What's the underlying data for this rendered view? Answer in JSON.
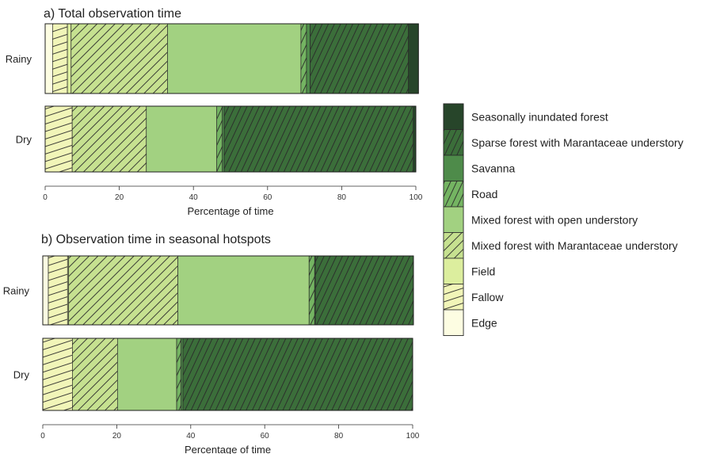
{
  "chart_data": {
    "type": "bar",
    "orientation": "horizontal",
    "stacked": true,
    "xlim": [
      0,
      100
    ],
    "xticks": [
      0,
      20,
      40,
      60,
      80,
      100
    ],
    "categories": [
      "Edge",
      "Fallow",
      "Field",
      "Mixed forest with Marantaceae understory",
      "Mixed forest with open understory",
      "Road",
      "Savanna",
      "Sparse forest with Marantaceae understory",
      "Seasonally inundated forest"
    ],
    "category_styles": [
      {
        "color": "#fdfde2",
        "hatch": "none"
      },
      {
        "color": "#f1f5b8",
        "hatch": "flat"
      },
      {
        "color": "#dcee9e",
        "hatch": "none"
      },
      {
        "color": "#c6e190",
        "hatch": "diag"
      },
      {
        "color": "#a2d181",
        "hatch": "none"
      },
      {
        "color": "#74b462",
        "hatch": "steep"
      },
      {
        "color": "#4e8b4a",
        "hatch": "none"
      },
      {
        "color": "#3b6e3a",
        "hatch": "steep"
      },
      {
        "color": "#27452a",
        "hatch": "none"
      }
    ],
    "legend_position": "right",
    "legend_order": [
      8,
      7,
      6,
      5,
      4,
      3,
      2,
      1,
      0
    ],
    "panels": [
      {
        "title": "a) Total observation time",
        "xlabel": "Percentage of time",
        "rows": [
          {
            "label": "Rainy",
            "values": [
              2,
              4,
              1,
              26,
              36,
              1.5,
              1,
              26.5,
              2.7
            ]
          },
          {
            "label": "Dry",
            "values": [
              0,
              7.3,
              0,
              20,
              19,
              1.5,
              0.5,
              51,
              0.7
            ]
          }
        ]
      },
      {
        "title": "b) Observation time in seasonal hotspots",
        "xlabel": "Percentage of time",
        "rows": [
          {
            "label": "Rainy",
            "values": [
              1.5,
              5.2,
              0.3,
              29.5,
              35.5,
              1.5,
              0.2,
              26.5,
              0
            ]
          },
          {
            "label": "Dry",
            "values": [
              0,
              8,
              0,
              12.2,
              16,
              1.2,
              0.5,
              62.1,
              0
            ]
          }
        ]
      }
    ]
  }
}
